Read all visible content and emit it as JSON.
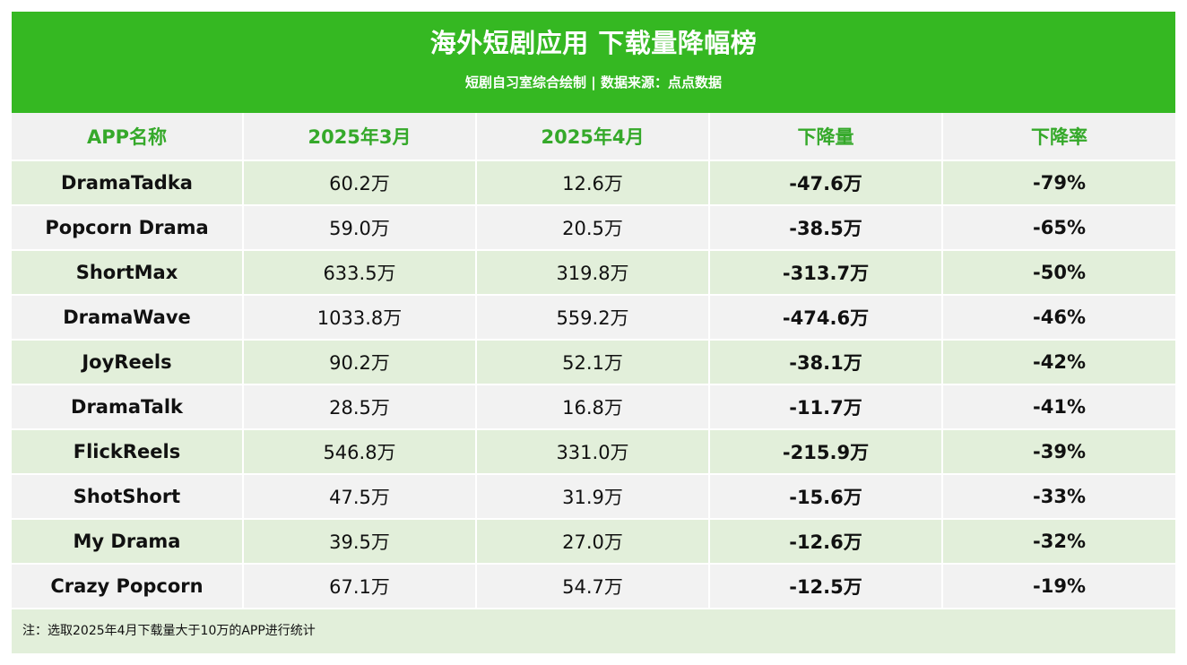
{
  "header": {
    "title": "海外短剧应用 下载量降幅榜",
    "subtitle": "短剧自习室综合绘制 | 数据来源：点点数据"
  },
  "table": {
    "columns": [
      "APP名称",
      "2025年3月",
      "2025年4月",
      "下降量",
      "下降率"
    ],
    "rows": [
      [
        "DramaTadka",
        "60.2万",
        "12.6万",
        "-47.6万",
        "-79%"
      ],
      [
        "Popcorn Drama",
        "59.0万",
        "20.5万",
        "-38.5万",
        "-65%"
      ],
      [
        "ShortMax",
        "633.5万",
        "319.8万",
        "-313.7万",
        "-50%"
      ],
      [
        "DramaWave",
        "1033.8万",
        "559.2万",
        "-474.6万",
        "-46%"
      ],
      [
        "JoyReels",
        "90.2万",
        "52.1万",
        "-38.1万",
        "-42%"
      ],
      [
        "DramaTalk",
        "28.5万",
        "16.8万",
        "-11.7万",
        "-41%"
      ],
      [
        "FlickReels",
        "546.8万",
        "331.0万",
        "-215.9万",
        "-39%"
      ],
      [
        "ShotShort",
        "47.5万",
        "31.9万",
        "-15.6万",
        "-33%"
      ],
      [
        "My Drama",
        "39.5万",
        "27.0万",
        "-12.6万",
        "-32%"
      ],
      [
        "Crazy Popcorn",
        "67.1万",
        "54.7万",
        "-12.5万",
        "-19%"
      ]
    ]
  },
  "footnote": "注：选取2025年4月下载量大于10万的APP进行统计",
  "colors": {
    "brand_green": "#35b822",
    "header_text_green": "#35a92a",
    "row_green": "#e2efda",
    "row_gray": "#f2f2f2"
  }
}
